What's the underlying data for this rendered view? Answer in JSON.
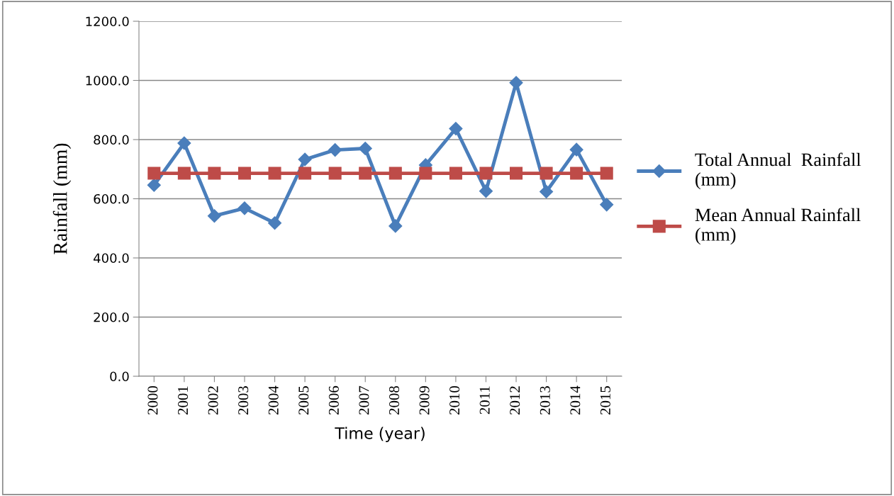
{
  "chart_data": {
    "type": "line",
    "xlabel": "Time (year)",
    "ylabel": "Rainfall (mm)",
    "categories": [
      "2000",
      "2001",
      "2002",
      "2003",
      "2004",
      "2005",
      "2006",
      "2007",
      "2008",
      "2009",
      "2010",
      "2011",
      "2012",
      "2013",
      "2014",
      "2015"
    ],
    "series": [
      {
        "name": "Total Annual  Rainfall (mm)",
        "color": "#4a7ebb",
        "marker": "diamond",
        "values": [
          646,
          788,
          542,
          568,
          518,
          733,
          765,
          770,
          508,
          714,
          837,
          626,
          992,
          624,
          766,
          580
        ]
      },
      {
        "name": "Mean Annual Rainfall (mm)",
        "color": "#be4b48",
        "marker": "square",
        "values": [
          686,
          686,
          686,
          686,
          686,
          686,
          686,
          686,
          686,
          686,
          686,
          686,
          686,
          686,
          686,
          686
        ]
      }
    ],
    "ylim": [
      0,
      1200
    ],
    "yticks": [
      {
        "value": 0,
        "label": "0.0"
      },
      {
        "value": 200,
        "label": "200.0"
      },
      {
        "value": 400,
        "label": "400.0"
      },
      {
        "value": 600,
        "label": "600.0"
      },
      {
        "value": 800,
        "label": "800.0"
      },
      {
        "value": 1000,
        "label": "1000.0"
      },
      {
        "value": 1200,
        "label": "1200.0"
      }
    ],
    "grid": "y",
    "legend": "right"
  }
}
